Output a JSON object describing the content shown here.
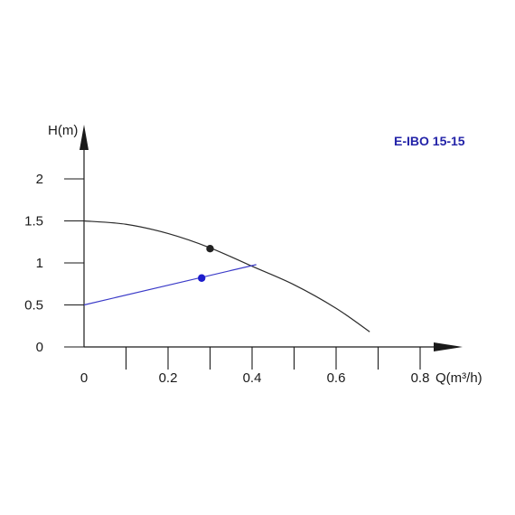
{
  "chart_data": {
    "type": "line",
    "title": "E-IBO 15-15",
    "xlabel": "Q(m³/h)",
    "ylabel": "H(m)",
    "xlim": [
      0,
      0.9
    ],
    "ylim": [
      0,
      2.5
    ],
    "x_ticks": [
      {
        "value": 0,
        "label": "0"
      },
      {
        "value": 0.1,
        "label": ""
      },
      {
        "value": 0.2,
        "label": "0.2"
      },
      {
        "value": 0.3,
        "label": ""
      },
      {
        "value": 0.4,
        "label": "0.4"
      },
      {
        "value": 0.5,
        "label": ""
      },
      {
        "value": 0.6,
        "label": "0.6"
      },
      {
        "value": 0.7,
        "label": ""
      },
      {
        "value": 0.8,
        "label": "0.8"
      }
    ],
    "y_ticks": [
      {
        "value": 0,
        "label": "0"
      },
      {
        "value": 0.5,
        "label": "0.5"
      },
      {
        "value": 1,
        "label": "1"
      },
      {
        "value": 1.5,
        "label": "1.5"
      },
      {
        "value": 2,
        "label": "2"
      }
    ],
    "grid": false,
    "colors": {
      "pump_curve": "#2b2b2b",
      "system_line": "#3a3ac8",
      "title": "#2323a8",
      "operating_point": "#1c1ccc"
    },
    "series": [
      {
        "values": [
          {
            "x": 0,
            "y": 1.5
          },
          {
            "x": 0.1,
            "y": 1.46
          },
          {
            "x": 0.2,
            "y": 1.35
          },
          {
            "x": 0.3,
            "y": 1.18
          },
          {
            "x": 0.4,
            "y": 0.96
          },
          {
            "x": 0.5,
            "y": 0.74
          },
          {
            "x": 0.6,
            "y": 0.46
          },
          {
            "x": 0.68,
            "y": 0.18
          }
        ],
        "marker": {
          "x": 0.3,
          "y": 1.17
        }
      },
      {
        "values": [
          {
            "x": 0,
            "y": 0.5
          },
          {
            "x": 0.41,
            "y": 0.98
          }
        ],
        "marker": {
          "x": 0.28,
          "y": 0.82
        }
      }
    ]
  }
}
